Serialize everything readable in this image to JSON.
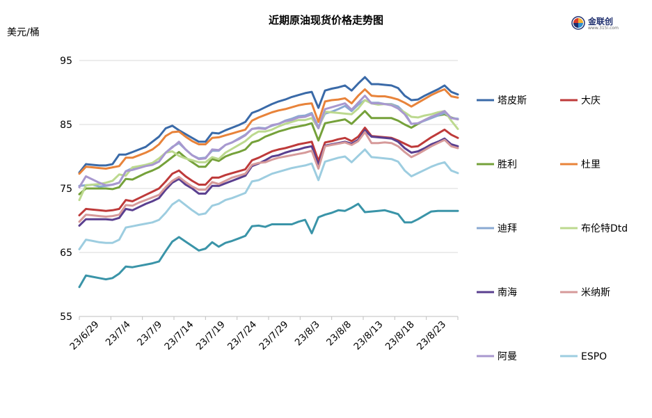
{
  "header": {
    "title": "近期原油现货价格走势图",
    "y_unit": "美元/桶"
  },
  "logo": {
    "brand": "金联创",
    "url": "www.315i.com"
  },
  "chart_data": {
    "type": "line",
    "title": "近期原油现货价格走势图",
    "ylabel": "美元/桶",
    "ylim": [
      55,
      95
    ],
    "yticks": [
      55,
      65,
      75,
      85,
      95
    ],
    "grid": "horizontal",
    "legend_placement": "right",
    "x_labels": [
      "23/6/29",
      "23/7/4",
      "23/7/9",
      "23/7/14",
      "23/7/19",
      "23/7/24",
      "23/7/29",
      "23/8/3",
      "23/8/8",
      "23/8/13",
      "23/8/18",
      "23/8/23"
    ],
    "series": [
      {
        "name": "塔皮斯",
        "color": "#3a6aa8",
        "values": [
          77.5,
          78.8,
          78.7,
          78.6,
          78.6,
          78.8,
          80.3,
          80.3,
          80.7,
          81.1,
          81.5,
          82.3,
          83.1,
          84.4,
          84.8,
          84.1,
          83.5,
          82.9,
          82.3,
          82.3,
          83.7,
          83.6,
          84.1,
          84.5,
          84.9,
          85.4,
          86.8,
          87.2,
          87.7,
          88.2,
          88.6,
          88.9,
          89.3,
          89.6,
          89.9,
          90.1,
          87.6,
          90.3,
          90.6,
          90.8,
          91.1,
          90.3,
          91.4,
          92.4,
          91.3,
          91.3,
          91.2,
          91.1,
          90.7,
          89.5,
          88.8,
          88.9,
          89.5,
          90.0,
          90.5,
          91.1,
          90.1,
          89.7
        ]
      },
      {
        "name": "大庆",
        "color": "#be3a3a",
        "values": [
          70.8,
          71.8,
          71.7,
          71.6,
          71.5,
          71.6,
          71.8,
          73.2,
          73.0,
          73.5,
          74.0,
          74.5,
          75.0,
          76.1,
          77.3,
          77.8,
          76.9,
          76.2,
          75.6,
          75.6,
          76.7,
          76.7,
          77.1,
          77.4,
          77.7,
          78.0,
          79.4,
          79.8,
          80.3,
          80.8,
          81.1,
          81.3,
          81.6,
          81.9,
          82.1,
          82.3,
          79.3,
          82.2,
          82.4,
          82.7,
          82.9,
          82.4,
          83.1,
          84.5,
          83.2,
          83.1,
          83.0,
          82.9,
          82.5,
          82.0,
          81.5,
          81.6,
          82.3,
          83.0,
          83.6,
          84.2,
          83.4,
          82.9
        ]
      },
      {
        "name": "胜利",
        "color": "#75a13a",
        "values": [
          74.1,
          75.0,
          75.0,
          75.0,
          75.0,
          74.9,
          75.2,
          76.5,
          76.4,
          76.9,
          77.4,
          77.8,
          78.3,
          79.1,
          79.9,
          80.7,
          79.8,
          79.1,
          78.4,
          78.4,
          79.6,
          79.3,
          80.0,
          80.4,
          80.7,
          81.1,
          82.2,
          82.5,
          83.1,
          83.5,
          83.9,
          84.2,
          84.5,
          84.7,
          84.9,
          85.2,
          82.5,
          85.2,
          85.4,
          85.6,
          85.8,
          85.1,
          86.1,
          87.1,
          86.0,
          86.0,
          86.0,
          86.0,
          85.6,
          85.0,
          84.5,
          85.1,
          85.7,
          86.2,
          86.4,
          86.6,
          86.1,
          85.8
        ]
      },
      {
        "name": "杜里",
        "color": "#e8833a",
        "values": [
          77.3,
          78.4,
          78.3,
          78.2,
          78.1,
          78.3,
          78.5,
          79.8,
          79.8,
          80.2,
          80.6,
          81.1,
          81.9,
          83.2,
          83.8,
          83.9,
          83.1,
          82.4,
          81.9,
          81.9,
          82.9,
          83.0,
          83.3,
          83.6,
          83.9,
          84.2,
          85.6,
          86.1,
          86.5,
          86.9,
          87.2,
          87.4,
          87.7,
          88.0,
          88.2,
          88.3,
          85.4,
          88.6,
          88.8,
          88.9,
          89.1,
          88.3,
          89.5,
          90.5,
          89.5,
          89.4,
          89.4,
          89.2,
          88.9,
          88.4,
          87.8,
          88.4,
          89.0,
          89.6,
          90.1,
          90.5,
          89.4,
          89.2
        ]
      },
      {
        "name": "迪拜",
        "color": "#8aa9d2",
        "values": [
          75.4,
          75.5,
          75.6,
          75.3,
          75.4,
          75.6,
          75.9,
          77.7,
          78.2,
          78.3,
          78.6,
          78.8,
          79.2,
          80.6,
          81.5,
          82.1,
          81.1,
          80.2,
          79.7,
          79.8,
          80.9,
          80.9,
          81.8,
          82.2,
          82.8,
          83.4,
          84.3,
          84.5,
          84.4,
          84.8,
          85.1,
          85.6,
          85.9,
          86.3,
          86.4,
          86.8,
          84.6,
          86.7,
          87.0,
          87.4,
          87.9,
          87.1,
          88.1,
          88.8,
          88.4,
          88.4,
          88.2,
          88.2,
          87.8,
          86.8,
          85.1,
          85.2,
          85.6,
          86.0,
          86.4,
          86.8,
          86.0,
          85.9
        ]
      },
      {
        "name": "布伦特Dtd",
        "color": "#bcd98f",
        "values": [
          73.2,
          75.5,
          75.6,
          75.7,
          75.9,
          76.2,
          77.2,
          77.0,
          78.3,
          78.5,
          78.7,
          79.0,
          79.7,
          80.6,
          80.8,
          80.1,
          79.7,
          79.4,
          79.1,
          79.1,
          79.9,
          79.6,
          80.6,
          81.2,
          81.8,
          82.4,
          83.3,
          83.9,
          83.9,
          84.2,
          84.7,
          85.1,
          85.4,
          85.7,
          85.7,
          86.0,
          84.4,
          87.0,
          86.9,
          86.8,
          86.7,
          86.6,
          87.5,
          88.8,
          88.3,
          88.1,
          88.2,
          88.1,
          87.5,
          86.9,
          86.2,
          86.1,
          86.4,
          86.6,
          86.9,
          87.1,
          85.6,
          84.3
        ]
      },
      {
        "name": "南海",
        "color": "#5a3f8f",
        "values": [
          69.2,
          70.2,
          70.2,
          70.2,
          70.2,
          70.1,
          70.4,
          71.8,
          71.6,
          72.1,
          72.6,
          73.0,
          73.5,
          74.8,
          75.9,
          76.5,
          75.6,
          75.0,
          74.2,
          74.2,
          75.4,
          75.4,
          75.8,
          76.2,
          76.6,
          77.0,
          78.5,
          78.9,
          79.4,
          80.0,
          80.2,
          80.6,
          80.9,
          81.1,
          81.4,
          81.6,
          78.7,
          81.7,
          81.9,
          82.1,
          82.3,
          82.0,
          82.6,
          84.1,
          83.1,
          83.0,
          82.9,
          82.8,
          82.3,
          81.3,
          80.6,
          80.8,
          81.3,
          81.9,
          82.3,
          82.8,
          81.9,
          81.6
        ]
      },
      {
        "name": "米纳斯",
        "color": "#d69a9a",
        "values": [
          69.8,
          70.9,
          70.8,
          70.7,
          70.6,
          70.7,
          70.9,
          72.4,
          72.3,
          72.8,
          73.2,
          73.6,
          74.0,
          75.2,
          76.2,
          76.8,
          76.0,
          75.3,
          74.8,
          74.8,
          76.0,
          75.7,
          76.2,
          76.7,
          77.0,
          77.3,
          78.7,
          79.0,
          79.1,
          79.5,
          79.8,
          80.0,
          80.2,
          80.4,
          80.6,
          80.9,
          78.1,
          81.6,
          81.8,
          82.0,
          82.2,
          81.8,
          82.4,
          83.8,
          82.1,
          82.1,
          82.2,
          82.1,
          81.6,
          80.7,
          79.9,
          80.4,
          81.0,
          81.6,
          82.1,
          82.6,
          81.6,
          81.3
        ]
      },
      {
        "name": "阿曼",
        "color": "#a898cf",
        "values": [
          75.2,
          76.9,
          76.4,
          75.9,
          75.5,
          75.6,
          75.9,
          77.7,
          77.9,
          78.2,
          78.5,
          78.7,
          79.2,
          80.6,
          81.4,
          82.3,
          81.1,
          80.2,
          79.6,
          79.7,
          81.1,
          81.0,
          81.8,
          82.2,
          82.7,
          83.3,
          84.3,
          84.4,
          84.3,
          84.9,
          85.1,
          85.5,
          85.7,
          86.1,
          86.2,
          86.6,
          84.4,
          87.4,
          87.7,
          88.0,
          88.3,
          87.3,
          88.4,
          89.5,
          88.3,
          88.3,
          88.2,
          88.0,
          87.5,
          86.6,
          85.1,
          85.2,
          85.7,
          86.2,
          86.6,
          87.1,
          86.0,
          85.8
        ]
      },
      {
        "name": "ESPO",
        "color": "#9dcde0",
        "values": [
          65.5,
          67.0,
          66.8,
          66.6,
          66.5,
          66.5,
          67.0,
          68.9,
          69.1,
          69.3,
          69.5,
          69.7,
          70.1,
          71.2,
          72.5,
          73.2,
          72.4,
          71.6,
          70.9,
          71.1,
          72.3,
          72.6,
          73.2,
          73.5,
          73.9,
          74.3,
          76.1,
          76.3,
          76.8,
          77.3,
          77.6,
          77.9,
          78.2,
          78.4,
          78.6,
          78.9,
          76.3,
          79.2,
          79.5,
          79.8,
          80.0,
          79.1,
          80.1,
          81.1,
          79.9,
          79.8,
          79.7,
          79.6,
          79.2,
          77.8,
          76.9,
          77.4,
          77.9,
          78.4,
          78.8,
          79.1,
          77.8,
          77.4
        ]
      },
      {
        "name": "",
        "color": "#3a94a8",
        "values": [
          59.6,
          61.4,
          61.2,
          61.0,
          60.8,
          61.0,
          61.7,
          62.8,
          62.7,
          62.9,
          63.1,
          63.3,
          63.6,
          65.2,
          66.7,
          67.4,
          66.7,
          66.0,
          65.3,
          65.6,
          66.6,
          65.9,
          66.5,
          66.8,
          67.2,
          67.6,
          69.1,
          69.2,
          69.0,
          69.4,
          69.4,
          69.4,
          69.4,
          69.8,
          70.1,
          68.0,
          70.5,
          70.9,
          71.2,
          71.6,
          71.5,
          72.0,
          72.6,
          71.3,
          71.4,
          71.5,
          71.6,
          71.3,
          71.0,
          69.7,
          69.7,
          70.2,
          70.8,
          71.4,
          71.5,
          71.5,
          71.5,
          71.5
        ]
      }
    ]
  }
}
